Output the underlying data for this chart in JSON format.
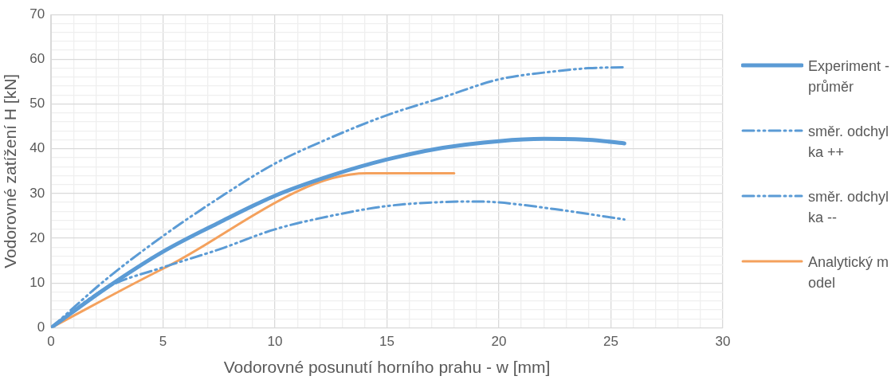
{
  "chart_data": {
    "type": "line",
    "xlabel": "Vodorovné posunutí horního prahu - w [mm]",
    "ylabel": "Vodorovné zatížení H [kN]",
    "xlim": [
      0,
      30
    ],
    "ylim": [
      0,
      70
    ],
    "xticks": [
      0,
      {
        "value": 1,
        "label": null
      },
      {
        "value": 2,
        "label": null
      },
      {
        "value": 3,
        "label": null
      },
      {
        "value": 4,
        "label": null
      },
      5,
      {
        "value": 6,
        "label": null
      },
      {
        "value": 7,
        "label": null
      },
      {
        "value": 8,
        "label": null
      },
      {
        "value": 9,
        "label": null
      },
      10,
      {
        "value": 11,
        "label": null
      },
      {
        "value": 12,
        "label": null
      },
      {
        "value": 13,
        "label": null
      },
      {
        "value": 14,
        "label": null
      },
      15,
      {
        "value": 16,
        "label": null
      },
      {
        "value": 17,
        "label": null
      },
      {
        "value": 18,
        "label": null
      },
      {
        "value": 19,
        "label": null
      },
      20,
      {
        "value": 21,
        "label": null
      },
      {
        "value": 22,
        "label": null
      },
      {
        "value": 23,
        "label": null
      },
      {
        "value": 24,
        "label": null
      },
      25,
      {
        "value": 26,
        "label": null
      },
      {
        "value": 27,
        "label": null
      },
      {
        "value": 28,
        "label": null
      },
      {
        "value": 29,
        "label": null
      },
      30
    ],
    "yticks": [
      0,
      {
        "value": 2,
        "label": null
      },
      {
        "value": 4,
        "label": null
      },
      {
        "value": 6,
        "label": null
      },
      {
        "value": 8,
        "label": null
      },
      10,
      {
        "value": 12,
        "label": null
      },
      {
        "value": 14,
        "label": null
      },
      {
        "value": 16,
        "label": null
      },
      {
        "value": 18,
        "label": null
      },
      20,
      {
        "value": 22,
        "label": null
      },
      {
        "value": 24,
        "label": null
      },
      {
        "value": 26,
        "label": null
      },
      {
        "value": 28,
        "label": null
      },
      30,
      {
        "value": 32,
        "label": null
      },
      {
        "value": 34,
        "label": null
      },
      {
        "value": 36,
        "label": null
      },
      {
        "value": 38,
        "label": null
      },
      40,
      {
        "value": 42,
        "label": null
      },
      {
        "value": 44,
        "label": null
      },
      {
        "value": 46,
        "label": null
      },
      {
        "value": 48,
        "label": null
      },
      50,
      {
        "value": 52,
        "label": null
      },
      {
        "value": 54,
        "label": null
      },
      {
        "value": 56,
        "label": null
      },
      {
        "value": 58,
        "label": null
      },
      60,
      {
        "value": 62,
        "label": null
      },
      {
        "value": 64,
        "label": null
      },
      {
        "value": 66,
        "label": null
      },
      {
        "value": 68,
        "label": null
      },
      70
    ],
    "grid": true,
    "legend": "right",
    "marker": "none",
    "series": [
      {
        "name": "Experiment - průměr",
        "color": "#5b9bd5",
        "line_style": "solid",
        "x": [
          0,
          2.5,
          5,
          7.5,
          10,
          12.5,
          15,
          17.5,
          20,
          22,
          24,
          25.6
        ],
        "values": [
          0,
          9,
          17,
          23.5,
          29.5,
          34,
          37.6,
          40.2,
          41.7,
          42.2,
          42,
          41.2
        ]
      },
      {
        "name": "směr. odchylka ++",
        "color": "#5b9bd5",
        "line_style": "dashed",
        "x": [
          0,
          2.5,
          5,
          7.5,
          10,
          12.5,
          15,
          17.5,
          20,
          22.5,
          24,
          25.6
        ],
        "values": [
          0,
          11,
          20.5,
          29,
          36.7,
          42.5,
          47.5,
          51.5,
          55.5,
          57.3,
          58,
          58.2
        ]
      },
      {
        "name": "směr. odchylka --",
        "color": "#5b9bd5",
        "line_style": "dashed",
        "x": [
          0,
          2.5,
          5,
          7.5,
          10,
          12.5,
          15,
          17.5,
          19,
          20,
          22.5,
          25.6
        ],
        "values": [
          0,
          9,
          13.5,
          17.5,
          22,
          25,
          27.2,
          28.1,
          28.2,
          28,
          26.5,
          24.2
        ]
      },
      {
        "name": "Analytický model",
        "color": "#f4a15d",
        "line_style": "solid",
        "x": [
          0,
          5,
          14.1,
          18
        ],
        "values": [
          0,
          13.2,
          34.5,
          34.5
        ]
      }
    ]
  }
}
